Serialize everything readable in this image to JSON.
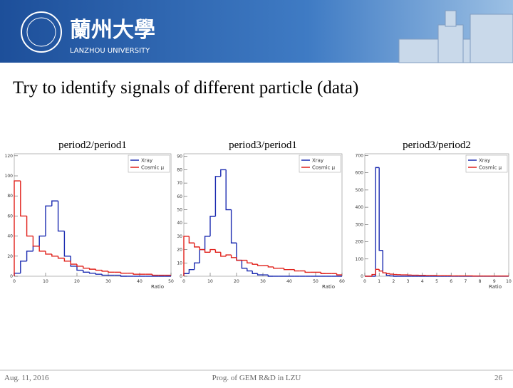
{
  "header": {
    "name_cn": "蘭州大學",
    "name_en": "LANZHOU UNIVERSITY"
  },
  "title": "Try to identify signals of different particle (data)",
  "footer": {
    "date": "Aug. 11, 2016",
    "topic": "Prog. of GEM R&D in LZU",
    "page": "26"
  },
  "chart_data": [
    {
      "type": "histogram",
      "title": "period2/period1",
      "x_label": "Ratio",
      "bins": [
        0,
        2,
        4,
        6,
        8,
        10,
        12,
        14,
        16,
        18,
        20,
        22,
        24,
        26,
        28,
        30,
        32,
        34,
        36,
        38,
        40,
        42,
        44,
        46,
        48,
        50
      ],
      "series": [
        {
          "name": "Xray",
          "color": "#1a2ab0",
          "values": [
            3,
            15,
            25,
            30,
            40,
            70,
            75,
            45,
            20,
            10,
            6,
            4,
            3,
            2,
            1,
            1,
            1,
            0,
            0,
            0,
            0,
            0,
            0,
            0,
            0
          ]
        },
        {
          "name": "Cosmic μ",
          "color": "#e0201a",
          "values": [
            95,
            60,
            40,
            30,
            25,
            22,
            20,
            18,
            15,
            12,
            10,
            8,
            7,
            6,
            5,
            4,
            4,
            3,
            3,
            2,
            2,
            2,
            1,
            1,
            1
          ]
        }
      ],
      "xlim": [
        0,
        50
      ],
      "xticks": [
        0,
        10,
        20,
        30,
        40,
        50
      ],
      "ylim": [
        0,
        122
      ],
      "yticks": [
        0,
        20,
        40,
        60,
        80,
        100,
        120
      ]
    },
    {
      "type": "histogram",
      "title": "period3/period1",
      "x_label": "Ratio",
      "bins": [
        0,
        2,
        4,
        6,
        8,
        10,
        12,
        14,
        16,
        18,
        20,
        22,
        24,
        26,
        28,
        30,
        32,
        34,
        36,
        38,
        40,
        42,
        44,
        46,
        48,
        50,
        52,
        54,
        56,
        58,
        60
      ],
      "series": [
        {
          "name": "Xray",
          "color": "#1a2ab0",
          "values": [
            2,
            5,
            10,
            20,
            30,
            45,
            75,
            80,
            50,
            25,
            12,
            6,
            4,
            2,
            1,
            1,
            0,
            0,
            0,
            0,
            0,
            0,
            0,
            0,
            0,
            0,
            0,
            0,
            0,
            0
          ]
        },
        {
          "name": "Cosmic μ",
          "color": "#e0201a",
          "values": [
            30,
            25,
            22,
            20,
            18,
            20,
            18,
            15,
            16,
            14,
            12,
            12,
            10,
            9,
            8,
            8,
            7,
            6,
            6,
            5,
            5,
            4,
            4,
            3,
            3,
            3,
            2,
            2,
            2,
            1
          ]
        }
      ],
      "xlim": [
        0,
        60
      ],
      "xticks": [
        0,
        10,
        20,
        30,
        40,
        50,
        60
      ],
      "ylim": [
        0,
        92
      ],
      "yticks": [
        0,
        10,
        20,
        30,
        40,
        50,
        60,
        70,
        80,
        90
      ]
    },
    {
      "type": "histogram",
      "title": "period3/period2",
      "x_label": "Ratio",
      "bins": [
        0,
        0.25,
        0.5,
        0.75,
        1,
        1.25,
        1.5,
        1.75,
        2,
        2.25,
        2.5,
        2.75,
        3,
        3.25,
        3.5,
        3.75,
        4,
        4.25,
        4.5,
        4.75,
        5,
        5.25,
        5.5,
        5.75,
        6,
        6.25,
        6.5,
        6.75,
        7,
        7.25,
        7.5,
        7.75,
        8,
        8.25,
        8.5,
        8.75,
        9,
        9.25,
        9.5,
        9.75,
        10
      ],
      "series": [
        {
          "name": "Xray",
          "color": "#1a2ab0",
          "values": [
            0,
            0,
            0,
            630,
            150,
            20,
            5,
            2,
            0,
            0,
            0,
            0,
            0,
            0,
            0,
            0,
            0,
            0,
            0,
            0,
            0,
            0,
            0,
            0,
            0,
            0,
            0,
            0,
            0,
            0,
            0,
            0,
            0,
            0,
            0,
            0,
            0,
            0,
            0,
            0
          ]
        },
        {
          "name": "Cosmic μ",
          "color": "#e0201a",
          "values": [
            0,
            0,
            10,
            40,
            30,
            20,
            15,
            12,
            10,
            9,
            8,
            8,
            7,
            6,
            6,
            5,
            5,
            4,
            4,
            4,
            3,
            3,
            3,
            3,
            2,
            2,
            2,
            2,
            2,
            2,
            1,
            1,
            1,
            1,
            1,
            1,
            1,
            1,
            1,
            1
          ]
        }
      ],
      "xlim": [
        0,
        10
      ],
      "xticks": [
        0,
        1,
        2,
        3,
        4,
        5,
        6,
        7,
        8,
        9,
        10
      ],
      "ylim": [
        0,
        710
      ],
      "yticks": [
        0,
        100,
        200,
        300,
        400,
        500,
        600,
        700
      ]
    }
  ]
}
